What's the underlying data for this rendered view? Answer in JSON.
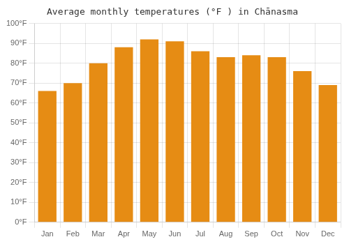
{
  "chart_data": {
    "type": "bar",
    "title": "Average monthly temperatures (°F ) in Chānasma",
    "categories": [
      "Jan",
      "Feb",
      "Mar",
      "Apr",
      "May",
      "Jun",
      "Jul",
      "Aug",
      "Sep",
      "Oct",
      "Nov",
      "Dec"
    ],
    "values": [
      66,
      70,
      80,
      88,
      92,
      91,
      86,
      83,
      84,
      83,
      76,
      69
    ],
    "color": "#e68c14",
    "ylim": [
      0,
      100
    ],
    "yticks": [
      {
        "value": 0,
        "label": "0°F"
      },
      {
        "value": 10,
        "label": "10°F"
      },
      {
        "value": 20,
        "label": "20°F"
      },
      {
        "value": 30,
        "label": "30°F"
      },
      {
        "value": 40,
        "label": "40°F"
      },
      {
        "value": 50,
        "label": "50°F"
      },
      {
        "value": 60,
        "label": "60°F"
      },
      {
        "value": 70,
        "label": "70°F"
      },
      {
        "value": 80,
        "label": "80°F"
      },
      {
        "value": 90,
        "label": "90°F"
      },
      {
        "value": 100,
        "label": "100°F"
      }
    ],
    "grid": true
  }
}
